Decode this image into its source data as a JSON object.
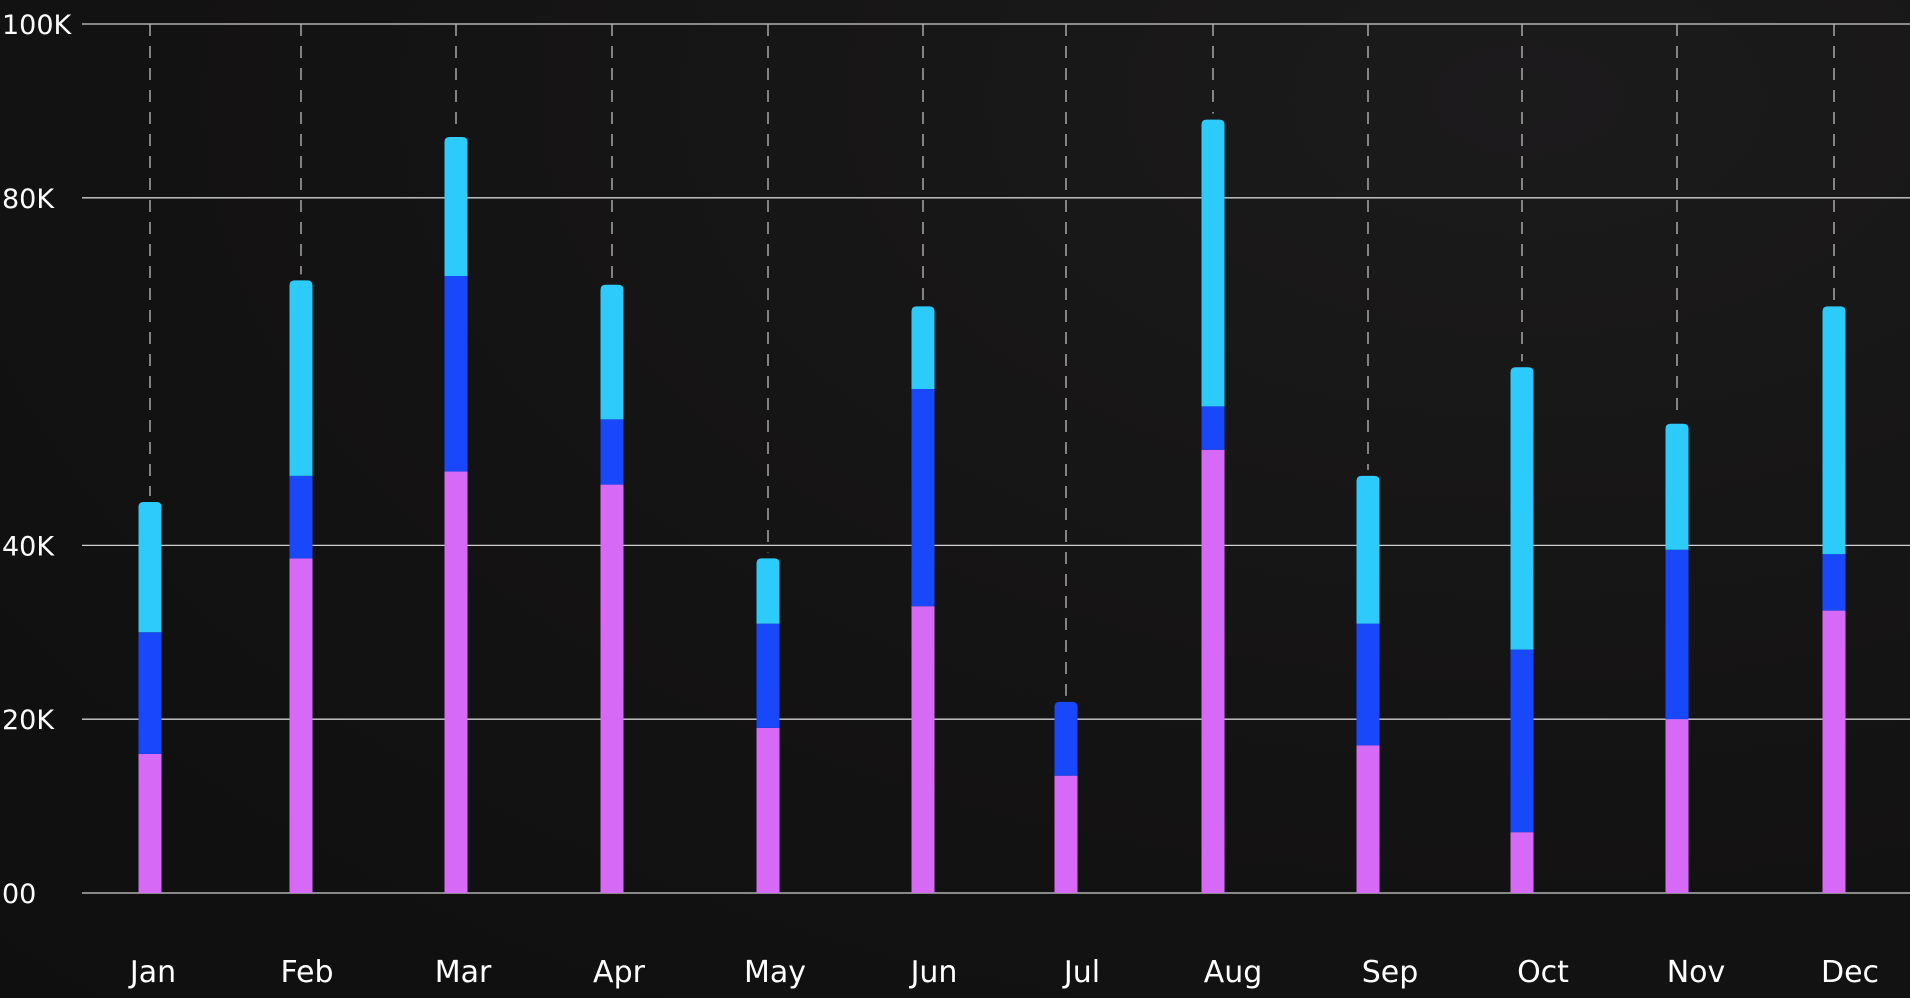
{
  "chart_data": {
    "type": "bar",
    "stacked": true,
    "categories": [
      "Jan",
      "Feb",
      "Mar",
      "Apr",
      "May",
      "Jun",
      "Jul",
      "Aug",
      "Sep",
      "Oct",
      "Nov",
      "Dec"
    ],
    "y_ticks": [
      {
        "value": 0,
        "label": "00"
      },
      {
        "value": 20000,
        "label": "20K"
      },
      {
        "value": 40000,
        "label": "40K"
      },
      {
        "value": 80000,
        "label": "80K"
      },
      {
        "value": 100000,
        "label": "100K"
      }
    ],
    "ylim": [
      0,
      100000
    ],
    "grid": {
      "horizontal": true,
      "vertical_dashed": true
    },
    "legend": "none",
    "series": [
      {
        "color": "#d66af7",
        "values": [
          16000,
          38500,
          48500,
          47000,
          19000,
          33000,
          13500,
          51000,
          17000,
          7000,
          20000,
          32500
        ]
      },
      {
        "color": "#1947fb",
        "values": [
          14000,
          9500,
          22500,
          7500,
          12000,
          25000,
          8500,
          5000,
          14000,
          21000,
          19500,
          6500
        ]
      },
      {
        "color": "#2ccbfb",
        "values": [
          15000,
          22500,
          16000,
          15500,
          7500,
          9500,
          0,
          33000,
          17000,
          32500,
          14500,
          28500
        ]
      }
    ]
  }
}
